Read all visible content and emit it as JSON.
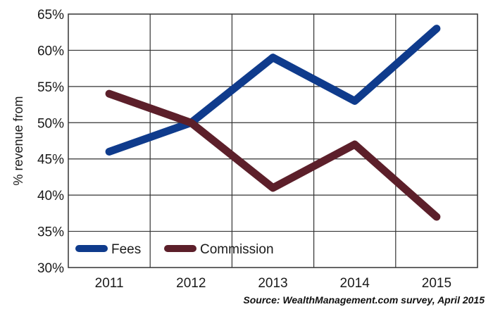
{
  "chart_data": {
    "type": "line",
    "categories": [
      "2011",
      "2012",
      "2013",
      "2014",
      "2015"
    ],
    "series": [
      {
        "name": "Fees",
        "values": [
          46,
          50,
          59,
          53,
          63
        ],
        "color": "#0f3b8c"
      },
      {
        "name": "Commission",
        "values": [
          54,
          50,
          41,
          47,
          37
        ],
        "color": "#5c1f2a"
      }
    ],
    "title": "",
    "xlabel": "",
    "ylabel": "% revenue from",
    "ylim": [
      30,
      65
    ],
    "yticks": [
      "30%",
      "35%",
      "40%",
      "45%",
      "50%",
      "55%",
      "60%",
      "65%"
    ],
    "grid": true,
    "legend_position": "bottom-left"
  },
  "source": "Source: WealthManagement.com survey, April 2015"
}
